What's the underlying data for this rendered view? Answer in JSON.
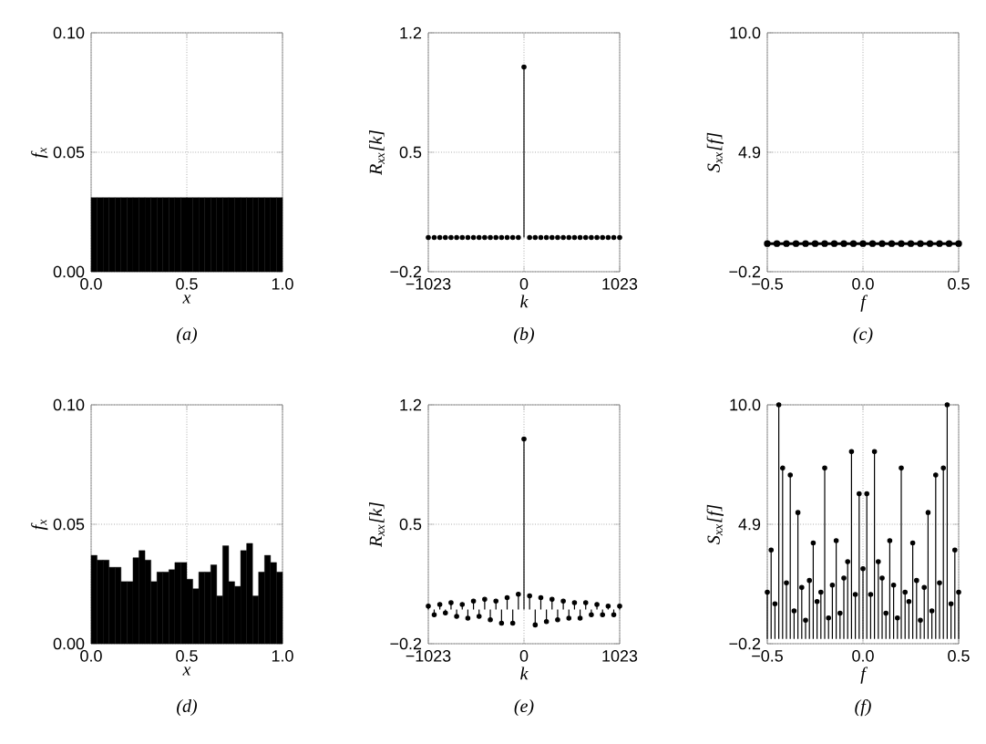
{
  "chart_data": [
    {
      "type": "histogram",
      "xlabel": "x",
      "ylabel": "f$_{x}$",
      "annotations": [
        "(a)"
      ],
      "bins": [
        0,
        0.03125,
        0.0625,
        0.09375,
        0.125,
        0.15625,
        0.1875,
        0.21875,
        0.25,
        0.28125,
        0.3125,
        0.34375,
        0.375,
        0.40625,
        0.4375,
        0.46875,
        0.5,
        0.53125,
        0.5625,
        0.59375,
        0.625,
        0.65625,
        0.6875,
        0.71875,
        0.75,
        0.78125,
        0.8125,
        0.84375,
        0.875,
        0.90625,
        0.9375,
        0.96875,
        1
      ],
      "values": [
        0.031,
        0.031,
        0.031,
        0.031,
        0.031,
        0.031,
        0.031,
        0.031,
        0.031,
        0.031,
        0.031,
        0.031,
        0.031,
        0.031,
        0.031,
        0.031,
        0.031,
        0.031,
        0.031,
        0.031,
        0.031,
        0.031,
        0.031,
        0.031,
        0.031,
        0.031,
        0.031,
        0.031,
        0.031,
        0.031,
        0.031,
        0.031
      ],
      "color": "#000000",
      "xlim": [
        0,
        1
      ],
      "ylim": [
        0,
        0.1
      ],
      "xticks": [
        {
          "value": 0,
          "label": "0.0"
        },
        {
          "value": 0.5,
          "label": "0.5"
        },
        {
          "value": 1,
          "label": "1.0"
        }
      ],
      "yticks": [
        {
          "value": 0,
          "label": "0.00"
        },
        {
          "value": 0.05,
          "label": "0.05"
        },
        {
          "value": 0.1,
          "label": "0.10"
        }
      ],
      "grid": true
    },
    {
      "type": "lollipop",
      "xlabel": "k",
      "ylabel": "R$_{xx}$[k]",
      "annotations": [
        "(b)"
      ],
      "x": [
        -1023,
        -960,
        -900,
        -840,
        -780,
        -720,
        -660,
        -600,
        -540,
        -480,
        -420,
        -360,
        -300,
        -240,
        -180,
        -120,
        -60,
        0,
        60,
        120,
        180,
        240,
        300,
        360,
        420,
        480,
        540,
        600,
        660,
        720,
        780,
        840,
        900,
        960,
        1023
      ],
      "values": [
        0,
        0,
        0,
        0,
        0,
        0,
        0,
        0,
        0,
        0,
        0,
        0,
        0,
        0,
        0,
        0,
        0,
        1.0,
        0,
        0,
        0,
        0,
        0,
        0,
        0,
        0,
        0,
        0,
        0,
        0,
        0,
        0,
        0,
        0,
        0
      ],
      "color": "#000000",
      "marker": "circle",
      "xlim": [
        -1023,
        1023
      ],
      "ylim": [
        -0.2,
        1.2
      ],
      "xticks": [
        {
          "value": -1023,
          "label": "−1023"
        },
        0,
        1023
      ],
      "yticks": [
        {
          "value": -0.2,
          "label": "−0.2"
        },
        0.5,
        1.2
      ],
      "grid": true
    },
    {
      "type": "line",
      "xlabel": "f",
      "ylabel": "S$_{xx}$[f]",
      "annotations": [
        "(c)"
      ],
      "x": [
        -0.5,
        -0.45,
        -0.4,
        -0.35,
        -0.3,
        -0.25,
        -0.2,
        -0.15,
        -0.1,
        -0.05,
        0,
        0.05,
        0.1,
        0.15,
        0.2,
        0.25,
        0.3,
        0.35,
        0.4,
        0.45,
        0.5
      ],
      "values": [
        1.0,
        1.0,
        1.0,
        1.0,
        1.0,
        1.0,
        1.0,
        1.0,
        1.0,
        1.0,
        1.0,
        1.0,
        1.0,
        1.0,
        1.0,
        1.0,
        1.0,
        1.0,
        1.0,
        1.0,
        1.0
      ],
      "color": "#000000",
      "marker": "circle",
      "xlim": [
        -0.5,
        0.5
      ],
      "ylim": [
        -0.2,
        10
      ],
      "xticks": [
        {
          "value": -0.5,
          "label": "−0.5"
        },
        {
          "value": 0,
          "label": "0.0"
        },
        0.5
      ],
      "yticks": [
        {
          "value": -0.2,
          "label": "−0.2"
        },
        4.9,
        {
          "value": 10,
          "label": "10.0"
        }
      ],
      "grid": true
    },
    {
      "type": "histogram",
      "xlabel": "x",
      "ylabel": "f$_{x}$",
      "annotations": [
        "(d)"
      ],
      "bins": [
        0,
        0.03125,
        0.0625,
        0.09375,
        0.125,
        0.15625,
        0.1875,
        0.21875,
        0.25,
        0.28125,
        0.3125,
        0.34375,
        0.375,
        0.40625,
        0.4375,
        0.46875,
        0.5,
        0.53125,
        0.5625,
        0.59375,
        0.625,
        0.65625,
        0.6875,
        0.71875,
        0.75,
        0.78125,
        0.8125,
        0.84375,
        0.875,
        0.90625,
        0.9375,
        0.96875,
        1
      ],
      "values": [
        0.037,
        0.035,
        0.035,
        0.032,
        0.032,
        0.026,
        0.026,
        0.036,
        0.039,
        0.035,
        0.026,
        0.03,
        0.03,
        0.031,
        0.034,
        0.034,
        0.027,
        0.023,
        0.03,
        0.03,
        0.033,
        0.02,
        0.041,
        0.026,
        0.024,
        0.039,
        0.042,
        0.02,
        0.03,
        0.037,
        0.034,
        0.03
      ],
      "color": "#000000",
      "xlim": [
        0,
        1
      ],
      "ylim": [
        0,
        0.1
      ],
      "xticks": [
        {
          "value": 0,
          "label": "0.0"
        },
        {
          "value": 0.5,
          "label": "0.5"
        },
        {
          "value": 1,
          "label": "1.0"
        }
      ],
      "yticks": [
        {
          "value": 0,
          "label": "0.00"
        },
        {
          "value": 0.05,
          "label": "0.05"
        },
        {
          "value": 0.1,
          "label": "0.10"
        }
      ],
      "grid": true
    },
    {
      "type": "lollipop",
      "xlabel": "k",
      "ylabel": "R$_{xx}$[k]",
      "annotations": [
        "(e)"
      ],
      "x": [
        -1023,
        -960,
        -900,
        -840,
        -780,
        -720,
        -660,
        -600,
        -540,
        -480,
        -420,
        -360,
        -300,
        -240,
        -180,
        -120,
        -60,
        0,
        60,
        120,
        180,
        240,
        300,
        360,
        420,
        480,
        540,
        600,
        660,
        720,
        780,
        840,
        900,
        960,
        1023
      ],
      "values": [
        0.02,
        -0.03,
        0.03,
        -0.02,
        0.04,
        -0.04,
        0.03,
        -0.05,
        0.05,
        -0.04,
        0.06,
        -0.06,
        0.05,
        -0.08,
        0.07,
        -0.08,
        0.09,
        1.0,
        0.08,
        -0.09,
        0.07,
        -0.07,
        0.06,
        -0.06,
        0.05,
        -0.05,
        0.04,
        -0.05,
        0.04,
        -0.03,
        0.03,
        -0.03,
        0.02,
        -0.03,
        0.02
      ],
      "color": "#000000",
      "marker": "circle",
      "xlim": [
        -1023,
        1023
      ],
      "ylim": [
        -0.2,
        1.2
      ],
      "xticks": [
        {
          "value": -1023,
          "label": "−1023"
        },
        0,
        1023
      ],
      "yticks": [
        {
          "value": -0.2,
          "label": "−0.2"
        },
        0.5,
        1.2
      ],
      "grid": true
    },
    {
      "type": "lollipop",
      "xlabel": "f",
      "ylabel": "S$_{xx}$[f]",
      "annotations": [
        "(f)"
      ],
      "x": [
        -0.5,
        -0.48,
        -0.46,
        -0.44,
        -0.42,
        -0.4,
        -0.38,
        -0.36,
        -0.34,
        -0.32,
        -0.3,
        -0.28,
        -0.26,
        -0.24,
        -0.22,
        -0.2,
        -0.18,
        -0.16,
        -0.14,
        -0.12,
        -0.1,
        -0.08,
        -0.06,
        -0.04,
        -0.02,
        0,
        0.02,
        0.04,
        0.06,
        0.08,
        0.1,
        0.12,
        0.14,
        0.16,
        0.18,
        0.2,
        0.22,
        0.24,
        0.26,
        0.28,
        0.3,
        0.32,
        0.34,
        0.36,
        0.38,
        0.4,
        0.42,
        0.44,
        0.46,
        0.48,
        0.5
      ],
      "values": [
        2.0,
        3.8,
        1.5,
        10.0,
        7.3,
        2.4,
        7.0,
        1.2,
        5.4,
        2.2,
        0.8,
        2.5,
        4.1,
        1.6,
        2.0,
        7.3,
        0.9,
        2.3,
        4.2,
        1.1,
        2.6,
        3.3,
        8.0,
        1.9,
        6.2,
        3.0,
        6.2,
        1.9,
        8.0,
        3.3,
        2.6,
        1.1,
        4.2,
        2.3,
        0.9,
        7.3,
        2.0,
        1.6,
        4.1,
        2.5,
        0.8,
        2.2,
        5.4,
        1.2,
        7.0,
        2.4,
        7.3,
        10.0,
        1.5,
        3.8,
        2.0
      ],
      "color": "#000000",
      "marker": "circle",
      "xlim": [
        -0.5,
        0.5
      ],
      "ylim": [
        -0.2,
        10
      ],
      "xticks": [
        {
          "value": -0.5,
          "label": "−0.5"
        },
        {
          "value": 0,
          "label": "0.0"
        },
        0.5
      ],
      "yticks": [
        {
          "value": -0.2,
          "label": "−0.2"
        },
        4.9,
        {
          "value": 10,
          "label": "10.0"
        }
      ],
      "grid": true
    }
  ]
}
